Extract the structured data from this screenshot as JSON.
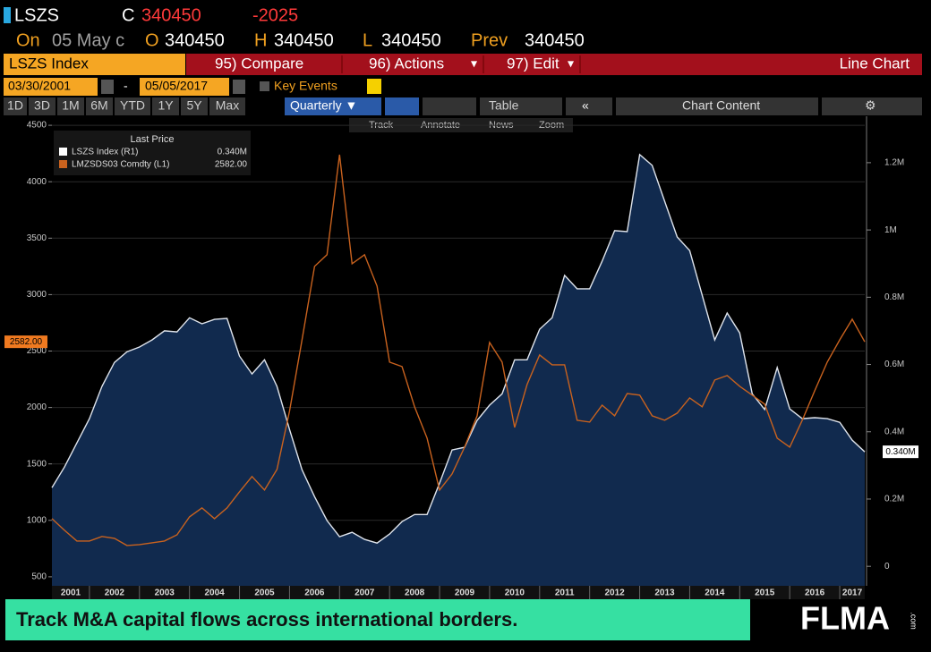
{
  "header": {
    "ticker": "LSZS",
    "c_label": "C",
    "last": "340450",
    "change": "-2025",
    "on_label": "On",
    "date": "05 May c",
    "o_label": "O",
    "open": "340450",
    "h_label": "H",
    "high": "340450",
    "l_label": "L",
    "low": "340450",
    "prev_label": "Prev",
    "prev": "340450"
  },
  "toolbar": {
    "security": "LSZS Index",
    "compare": "95) Compare",
    "actions": "96) Actions",
    "edit": "97) Edit",
    "chart_type": "Line Chart"
  },
  "dates": {
    "start": "03/30/2001",
    "dash": "-",
    "end": "05/05/2017",
    "key_events": "Key Events"
  },
  "periods": [
    "1D",
    "3D",
    "1M",
    "6M",
    "YTD",
    "1Y",
    "5Y",
    "Max"
  ],
  "frequency": "Quarterly ▼",
  "table_button": "Table",
  "chart_content": "Chart Content",
  "chart_tools": [
    "Track",
    "Annotate",
    "News",
    "Zoom"
  ],
  "chart_data": {
    "type": "line",
    "legend_title": "Last Price",
    "x": [
      2001.25,
      2001.5,
      2001.75,
      2002,
      2002.25,
      2002.5,
      2002.75,
      2003,
      2003.25,
      2003.5,
      2003.75,
      2004,
      2004.25,
      2004.5,
      2004.75,
      2005,
      2005.25,
      2005.5,
      2005.75,
      2006,
      2006.25,
      2006.5,
      2006.75,
      2007,
      2007.25,
      2007.5,
      2007.75,
      2008,
      2008.25,
      2008.5,
      2008.75,
      2009,
      2009.25,
      2009.5,
      2009.75,
      2010,
      2010.25,
      2010.5,
      2010.75,
      2011,
      2011.25,
      2011.5,
      2011.75,
      2012,
      2012.25,
      2012.5,
      2012.75,
      2013,
      2013.25,
      2013.5,
      2013.75,
      2014,
      2014.25,
      2014.5,
      2014.75,
      2015,
      2015.25,
      2015.5,
      2015.75,
      2016,
      2016.25,
      2016.5,
      2016.75,
      2017,
      2017.25,
      2017.5
    ],
    "xlim": [
      2001.25,
      2017.5
    ],
    "xticks": [
      2001,
      2002,
      2003,
      2004,
      2005,
      2006,
      2007,
      2008,
      2009,
      2010,
      2011,
      2012,
      2013,
      2014,
      2015,
      2016,
      2017
    ],
    "ylim": [
      420,
      4580
    ],
    "yticks": [
      500,
      1000,
      1500,
      2000,
      2500,
      3000,
      3500,
      4000,
      4500
    ],
    "y2lim": [
      -58000,
      1338000
    ],
    "y2ticks": [
      0,
      {
        "value": 200000,
        "label": "0.2M"
      },
      {
        "value": 400000,
        "label": "0.4M"
      },
      {
        "value": 600000,
        "label": "0.6M"
      },
      {
        "value": 800000,
        "label": "0.8M"
      },
      {
        "value": 1000000,
        "label": "1M"
      },
      {
        "value": 1200000,
        "label": "1.2M"
      }
    ],
    "grid": true,
    "series": [
      {
        "name": "LSZS Index  (R1)",
        "axis": "y2",
        "color": "#dfe4ec",
        "fill": "#112a4e",
        "last_label": "0.340M",
        "values": [
          234000,
          295000,
          367000,
          439000,
          535000,
          606000,
          638000,
          652000,
          673000,
          700000,
          697000,
          739000,
          721000,
          734000,
          737000,
          625000,
          572000,
          614000,
          535000,
          407000,
          287000,
          207000,
          136000,
          88000,
          101000,
          80000,
          69000,
          96000,
          133000,
          154000,
          154000,
          247000,
          346000,
          354000,
          434000,
          479000,
          513000,
          614000,
          614000,
          705000,
          739000,
          865000,
          825000,
          825000,
          907000,
          998000,
          995000,
          1224000,
          1192000,
          1085000,
          979000,
          939000,
          806000,
          673000,
          753000,
          694000,
          513000,
          466000,
          591000,
          468000,
          439000,
          442000,
          439000,
          428000,
          375000,
          340450
        ]
      },
      {
        "name": "LMZSDS03 Comdty  (L1)",
        "axis": "y",
        "color": "#c9621e",
        "last_label": "2582.00",
        "values": [
          1015,
          912,
          817,
          817,
          857,
          841,
          777,
          785,
          801,
          817,
          872,
          1031,
          1110,
          1015,
          1110,
          1253,
          1388,
          1269,
          1451,
          1966,
          2600,
          3250,
          3353,
          4240,
          3273,
          3353,
          3075,
          2402,
          2362,
          2006,
          1728,
          1269,
          1411,
          1649,
          1926,
          2576,
          2402,
          1823,
          2204,
          2465,
          2378,
          2378,
          1887,
          1871,
          2021,
          1926,
          2124,
          2109,
          1926,
          1887,
          1950,
          2085,
          2006,
          2243,
          2283,
          2188,
          2109,
          2029,
          1728,
          1649,
          1887,
          2148,
          2402,
          2600,
          2782,
          2582
        ]
      }
    ]
  },
  "banner": "Track M&A capital flows across international borders.",
  "logo": "FLMA",
  "logo_suffix": ".com"
}
